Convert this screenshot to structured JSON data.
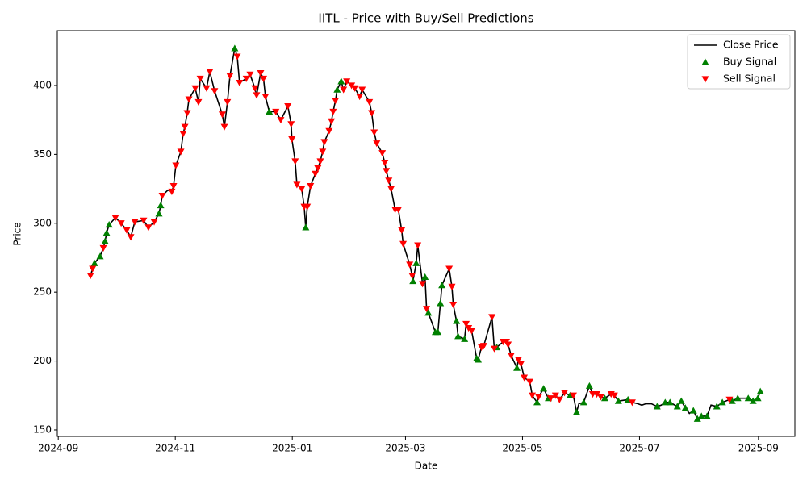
{
  "chart_data": {
    "type": "line",
    "title": "IITL - Price with Buy/Sell Predictions",
    "xlabel": "Date",
    "ylabel": "Price",
    "xlim": [
      -0.5,
      384
    ],
    "ylim": [
      145.3,
      439.8
    ],
    "xticks": [
      {
        "value": 0,
        "label": "2024-09"
      },
      {
        "value": 61,
        "label": "2024-11"
      },
      {
        "value": 122,
        "label": "2025-01"
      },
      {
        "value": 181,
        "label": "2025-03"
      },
      {
        "value": 242,
        "label": "2025-05"
      },
      {
        "value": 303,
        "label": "2025-07"
      },
      {
        "value": 365,
        "label": "2025-09"
      }
    ],
    "yticks": [
      150,
      200,
      250,
      300,
      350,
      400
    ],
    "legend": "upper right",
    "series": [
      {
        "name": "Close Price",
        "type": "line",
        "color": "#000000",
        "x": [
          16.8,
          17.9,
          18.9,
          21.8,
          23.5,
          24.4,
          25.2,
          26.5,
          29.8,
          32.8,
          35.7,
          37.8,
          39.9,
          44.5,
          47,
          50,
          52.5,
          53.4,
          54.2,
          57.1,
          59.2,
          60.1,
          61.3,
          63.9,
          65.1,
          66,
          67.2,
          68.1,
          71.4,
          73.1,
          74,
          77.3,
          79,
          81.5,
          85.5,
          86.6,
          88.2,
          89.5,
          92,
          93.3,
          94.5,
          98,
          100,
          102.5,
          103.4,
          105.5,
          107,
          108,
          110,
          113.4,
          116,
          119.7,
          121.4,
          121.8,
          123.5,
          124.4,
          126.9,
          128.2,
          129,
          129.8,
          131.5,
          134,
          135.3,
          136.6,
          137.8,
          138.7,
          141.2,
          142.4,
          143.3,
          144.5,
          145.4,
          147.5,
          148.7,
          150.4,
          152.9,
          154.6,
          157.1,
          158.4,
          162.2,
          163.4,
          164.7,
          166,
          168.9,
          170.2,
          171,
          172.3,
          173.5,
          175.6,
          177.3,
          179,
          179.8,
          183.2,
          184.5,
          184.9,
          186.6,
          187.4,
          189.9,
          191.2,
          192,
          192.9,
          196.6,
          197.9,
          199.2,
          200,
          203.8,
          205.2,
          205.9,
          207.6,
          208.4,
          211.8,
          212.6,
          213.9,
          215.5,
          218.1,
          218.9,
          220.6,
          221.8,
          226.1,
          227.3,
          228.6,
          231.9,
          233.6,
          234.5,
          236.1,
          239.1,
          239.9,
          241.2,
          242.9,
          245.8,
          247.1,
          249.6,
          250.4,
          253,
          255.5,
          256.7,
          259.2,
          261.3,
          263.9,
          266.8,
          268.5,
          270.2,
          271.4,
          273.9,
          276.9,
          278.6,
          280.7,
          282.8,
          284.9,
          288.2,
          289.9,
          292,
          297,
          299.2,
          302.1,
          304.2,
          306.3,
          309.2,
          312.2,
          314.3,
          316.4,
          318.9,
          322.7,
          324.8,
          326.9,
          329,
          331.1,
          333.2,
          335.3,
          338.2,
          340.3,
          343.3,
          346.2,
          349.9,
          351.3,
          354.2,
          359.7,
          362.2,
          364.7,
          366
        ],
        "values": [
          262,
          267,
          271,
          276,
          282,
          287,
          293,
          299,
          304,
          300,
          295,
          290,
          301,
          302,
          297,
          301,
          307,
          313,
          320,
          324,
          323,
          327,
          342,
          352,
          365,
          370,
          380,
          390,
          398,
          388,
          405,
          398,
          410,
          396,
          379,
          370,
          388,
          407,
          427,
          421,
          402,
          405,
          408,
          398,
          393,
          409,
          405,
          392,
          381,
          381,
          375,
          385,
          372,
          361,
          345,
          328,
          325,
          312,
          297,
          312,
          327,
          336,
          340,
          345,
          352,
          359,
          367,
          374,
          381,
          389,
          397,
          403,
          397,
          403,
          400,
          398,
          392,
          397,
          388,
          380,
          366,
          358,
          351,
          344,
          338,
          331,
          325,
          310,
          310,
          295,
          285,
          270,
          262,
          258,
          271,
          284,
          256,
          261,
          238,
          235,
          221,
          221,
          242,
          255,
          267,
          254,
          241,
          229,
          218,
          216,
          227,
          224,
          222,
          202,
          201,
          210,
          211,
          232,
          209,
          210,
          214,
          214,
          212,
          204,
          195,
          201,
          198,
          188,
          185,
          175,
          170,
          174,
          180,
          173,
          173,
          175,
          172,
          177,
          175,
          175,
          163,
          169,
          170,
          182,
          176,
          176,
          174,
          173,
          176,
          175,
          171,
          172,
          170,
          169,
          168,
          169,
          169,
          167,
          168,
          170,
          170,
          167,
          171,
          166,
          162,
          164,
          158,
          160,
          160,
          168,
          167,
          170,
          172,
          171,
          173,
          173,
          171,
          173,
          178
        ]
      },
      {
        "name": "Buy Signal",
        "type": "scatter",
        "marker": "triangle-up",
        "color": "#008000",
        "x": [
          18.9,
          21.8,
          24.4,
          25.2,
          26.5,
          52.5,
          53.4,
          92,
          110,
          129,
          145.4,
          147.5,
          184.9,
          186.6,
          191.2,
          192.9,
          196.6,
          197.9,
          199.2,
          200,
          207.6,
          208.4,
          211.8,
          218.1,
          218.9,
          228.6,
          239.1,
          249.6,
          253,
          255.5,
          266.8,
          270.2,
          273.9,
          276.9,
          284.9,
          292,
          297,
          312.2,
          316.4,
          318.9,
          322.7,
          324.8,
          326.9,
          331.1,
          333.2,
          335.3,
          338.2,
          343.3,
          346.2,
          351.3,
          354.2,
          359.7,
          362.2,
          364.7,
          366
        ],
        "values": [
          271,
          276,
          287,
          293,
          299,
          307,
          313,
          427,
          381,
          297,
          397,
          403,
          258,
          271,
          261,
          235,
          221,
          221,
          242,
          255,
          229,
          218,
          216,
          202,
          201,
          210,
          195,
          170,
          180,
          173,
          175,
          163,
          170,
          182,
          173,
          171,
          172,
          167,
          170,
          170,
          167,
          171,
          166,
          164,
          158,
          160,
          160,
          167,
          170,
          171,
          173,
          173,
          171,
          173,
          178
        ]
      },
      {
        "name": "Sell Signal",
        "type": "scatter",
        "marker": "triangle-down",
        "color": "#ff0000",
        "x": [
          16.8,
          17.9,
          23.5,
          29.8,
          32.8,
          35.7,
          37.8,
          39.9,
          44.5,
          47,
          50,
          54.2,
          59.2,
          60.1,
          61.3,
          63.9,
          65.1,
          66,
          67.2,
          68.1,
          71.4,
          73.1,
          74,
          77.3,
          79,
          81.5,
          85.5,
          86.6,
          88.2,
          89.5,
          93.3,
          94.5,
          98,
          100,
          102.5,
          103.4,
          105.5,
          107,
          108,
          113.4,
          116,
          119.7,
          121.4,
          121.8,
          123.5,
          124.4,
          126.9,
          128.2,
          129.8,
          131.5,
          134,
          135.3,
          136.6,
          137.8,
          138.7,
          141.2,
          142.4,
          143.3,
          144.5,
          148.7,
          150.4,
          152.9,
          154.6,
          157.1,
          158.4,
          162.2,
          163.4,
          164.7,
          166,
          168.9,
          170.2,
          171,
          172.3,
          173.5,
          175.6,
          177.3,
          179,
          179.8,
          183.2,
          184.5,
          187.4,
          189.9,
          192,
          203.8,
          205.2,
          205.9,
          212.6,
          213.9,
          215.5,
          220.6,
          221.8,
          226.1,
          227.3,
          231.9,
          233.6,
          234.5,
          236.1,
          239.9,
          241.2,
          242.9,
          245.8,
          247.1,
          250.4,
          256.7,
          259.2,
          261.3,
          263.9,
          268.5,
          278.6,
          280.7,
          282.8,
          288.2,
          289.9,
          299.2,
          349.9
        ],
        "values": [
          262,
          267,
          282,
          304,
          300,
          295,
          290,
          301,
          302,
          297,
          301,
          320,
          323,
          327,
          342,
          352,
          365,
          370,
          380,
          390,
          398,
          388,
          405,
          398,
          410,
          396,
          379,
          370,
          388,
          407,
          421,
          402,
          405,
          408,
          398,
          393,
          409,
          405,
          392,
          381,
          375,
          385,
          372,
          361,
          345,
          328,
          325,
          312,
          312,
          327,
          336,
          340,
          345,
          352,
          359,
          367,
          374,
          381,
          389,
          397,
          403,
          400,
          398,
          392,
          397,
          388,
          380,
          366,
          358,
          351,
          344,
          338,
          331,
          325,
          310,
          310,
          295,
          285,
          270,
          262,
          284,
          256,
          238,
          267,
          254,
          241,
          227,
          224,
          222,
          210,
          211,
          232,
          209,
          214,
          214,
          212,
          204,
          201,
          198,
          188,
          185,
          175,
          174,
          173,
          175,
          172,
          177,
          175,
          176,
          176,
          174,
          176,
          175,
          170,
          172
        ]
      }
    ]
  }
}
